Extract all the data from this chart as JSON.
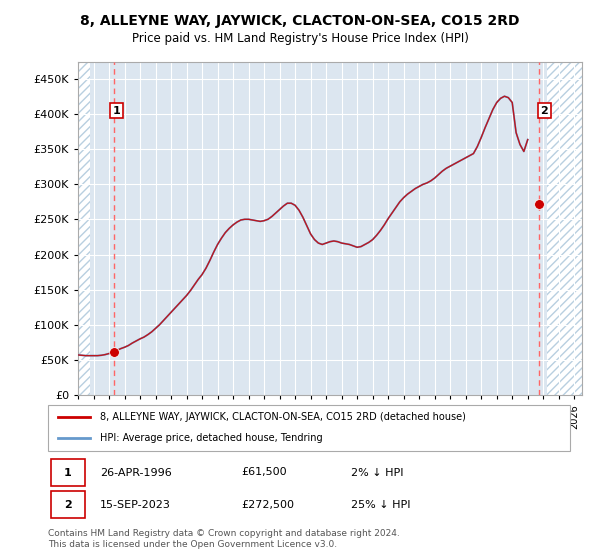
{
  "title": "8, ALLEYNE WAY, JAYWICK, CLACTON-ON-SEA, CO15 2RD",
  "subtitle": "Price paid vs. HM Land Registry's House Price Index (HPI)",
  "ylim": [
    0,
    475000
  ],
  "yticks": [
    0,
    50000,
    100000,
    150000,
    200000,
    250000,
    300000,
    350000,
    400000,
    450000
  ],
  "ytick_labels": [
    "£0",
    "£50K",
    "£100K",
    "£150K",
    "£200K",
    "£250K",
    "£300K",
    "£350K",
    "£400K",
    "£450K"
  ],
  "xlim_start": 1994.0,
  "xlim_end": 2026.5,
  "sale1_date": 1996.32,
  "sale1_price": 61500,
  "sale2_date": 2023.71,
  "sale2_price": 272500,
  "plot_bg_color": "#dce6f0",
  "hatch_color": "#b8cfe0",
  "grid_color": "#ffffff",
  "line_color_red": "#cc0000",
  "line_color_blue": "#6699cc",
  "vline_color": "#ff6666",
  "dot_color": "#cc0000",
  "legend_label1": "8, ALLEYNE WAY, JAYWICK, CLACTON-ON-SEA, CO15 2RD (detached house)",
  "legend_label2": "HPI: Average price, detached house, Tendring",
  "annotation1_label": "1",
  "annotation2_label": "2",
  "table_row1": [
    "1",
    "26-APR-1996",
    "£61,500",
    "2% ↓ HPI"
  ],
  "table_row2": [
    "2",
    "15-SEP-2023",
    "£272,500",
    "25% ↓ HPI"
  ],
  "footnote": "Contains HM Land Registry data © Crown copyright and database right 2024.\nThis data is licensed under the Open Government Licence v3.0.",
  "hpi_years": [
    1994.0,
    1994.25,
    1994.5,
    1994.75,
    1995.0,
    1995.25,
    1995.5,
    1995.75,
    1996.0,
    1996.25,
    1996.5,
    1996.75,
    1997.0,
    1997.25,
    1997.5,
    1997.75,
    1998.0,
    1998.25,
    1998.5,
    1998.75,
    1999.0,
    1999.25,
    1999.5,
    1999.75,
    2000.0,
    2000.25,
    2000.5,
    2000.75,
    2001.0,
    2001.25,
    2001.5,
    2001.75,
    2002.0,
    2002.25,
    2002.5,
    2002.75,
    2003.0,
    2003.25,
    2003.5,
    2003.75,
    2004.0,
    2004.25,
    2004.5,
    2004.75,
    2005.0,
    2005.25,
    2005.5,
    2005.75,
    2006.0,
    2006.25,
    2006.5,
    2006.75,
    2007.0,
    2007.25,
    2007.5,
    2007.75,
    2008.0,
    2008.25,
    2008.5,
    2008.75,
    2009.0,
    2009.25,
    2009.5,
    2009.75,
    2010.0,
    2010.25,
    2010.5,
    2010.75,
    2011.0,
    2011.25,
    2011.5,
    2011.75,
    2012.0,
    2012.25,
    2012.5,
    2012.75,
    2013.0,
    2013.25,
    2013.5,
    2013.75,
    2014.0,
    2014.25,
    2014.5,
    2014.75,
    2015.0,
    2015.25,
    2015.5,
    2015.75,
    2016.0,
    2016.25,
    2016.5,
    2016.75,
    2017.0,
    2017.25,
    2017.5,
    2017.75,
    2018.0,
    2018.25,
    2018.5,
    2018.75,
    2019.0,
    2019.25,
    2019.5,
    2019.75,
    2020.0,
    2020.25,
    2020.5,
    2020.75,
    2021.0,
    2021.25,
    2021.5,
    2021.75,
    2022.0,
    2022.25,
    2022.5,
    2022.75,
    2023.0,
    2023.25,
    2023.5,
    2023.75,
    2024.0
  ],
  "hpi_values": [
    57000,
    56500,
    56000,
    56000,
    56000,
    56000,
    56500,
    57500,
    59000,
    61000,
    63500,
    66000,
    68000,
    70500,
    74000,
    77000,
    80000,
    82500,
    86000,
    90000,
    95000,
    100000,
    106000,
    112000,
    118000,
    124000,
    130000,
    136000,
    142000,
    149000,
    157000,
    165000,
    172000,
    181000,
    192000,
    204000,
    215000,
    224000,
    232000,
    238000,
    243000,
    247000,
    250000,
    251000,
    251000,
    250000,
    249000,
    248000,
    249000,
    251000,
    255000,
    260000,
    265000,
    270000,
    274000,
    274000,
    271000,
    264000,
    254000,
    242000,
    230000,
    222000,
    217000,
    215000,
    217000,
    219000,
    220000,
    219000,
    217000,
    216000,
    215000,
    213000,
    211000,
    212000,
    215000,
    218000,
    222000,
    228000,
    235000,
    243000,
    252000,
    260000,
    268000,
    276000,
    282000,
    287000,
    291000,
    295000,
    298000,
    301000,
    303000,
    306000,
    310000,
    315000,
    320000,
    324000,
    327000,
    330000,
    333000,
    336000,
    339000,
    342000,
    345000,
    355000,
    368000,
    382000,
    395000,
    408000,
    418000,
    424000,
    427000,
    425000,
    418000,
    375000,
    358000,
    348000,
    365000
  ]
}
